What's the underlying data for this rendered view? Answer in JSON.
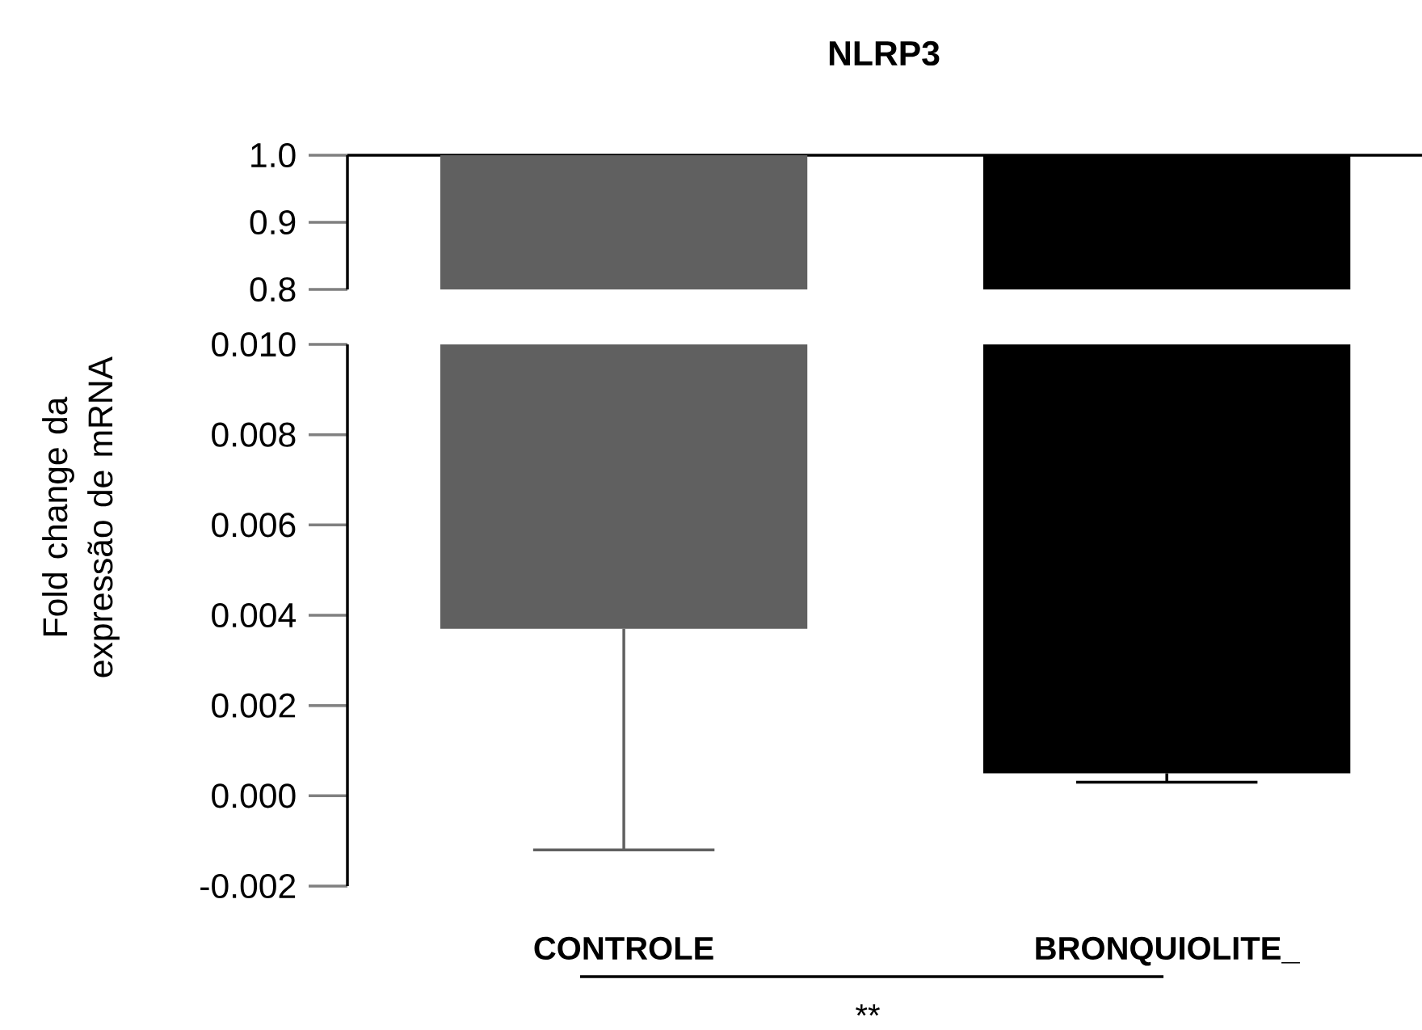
{
  "chart_data": [
    {
      "type": "bar",
      "title": "NLRP3",
      "base": [
        1,
        1
      ],
      "values": [
        -0.9963,
        -0.9995
      ],
      "colors": [
        "#606060",
        "#000000"
      ],
      "ylim": [
        0.8,
        1.0
      ],
      "yticks": [
        0.8,
        0.9,
        {
          "value": 1.0,
          "label": "1.0"
        }
      ],
      "tick_labels": "y"
    },
    {
      "type": "bar",
      "ylabel": "Fold change da expressão de mRNA",
      "categories": [
        "CONTROLE",
        "BRONQUIOLITE_"
      ],
      "base": [
        1,
        1
      ],
      "values": [
        -0.9963,
        -0.9995
      ],
      "colors": [
        "#606060",
        "#000000"
      ],
      "errors": [
        [
          -0.0012,
          0.0037
        ],
        [
          0.0003,
          0.0005
        ]
      ],
      "ylim": [
        -0.002,
        0.01
      ],
      "yticks": [
        -0.002,
        {
          "value": 0,
          "label": "0.000"
        },
        0.002,
        0.004,
        0.006,
        0.008,
        {
          "value": 0.01,
          "label": "0.010"
        }
      ],
      "annotations": [
        "**"
      ]
    }
  ]
}
